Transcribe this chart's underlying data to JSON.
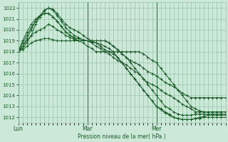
{
  "bg_color": "#cce8d8",
  "grid_color": "#99c4aa",
  "line_color": "#1a5c28",
  "xlabel": "Pression niveau de la mer( hPa )",
  "xtick_labels": [
    "Lun",
    "Mar",
    "Mer"
  ],
  "xtick_positions": [
    0,
    16,
    32
  ],
  "ylim": [
    1011.5,
    1022.5
  ],
  "yticks": [
    1012,
    1013,
    1014,
    1015,
    1016,
    1017,
    1018,
    1019,
    1020,
    1021,
    1022
  ],
  "n_points": 49,
  "series": [
    [
      1018.0,
      1018.3,
      1018.8,
      1019.5,
      1020.5,
      1021.2,
      1021.8,
      1022.0,
      1021.9,
      1021.5,
      1021.0,
      1020.5,
      1020.2,
      1020.0,
      1019.8,
      1019.5,
      1019.2,
      1019.0,
      1018.8,
      1018.5,
      1018.2,
      1018.0,
      1017.8,
      1017.5,
      1017.0,
      1016.5,
      1016.0,
      1015.5,
      1015.0,
      1014.5,
      1014.0,
      1013.5,
      1013.0,
      1012.7,
      1012.4,
      1012.2,
      1012.0,
      1011.9,
      1011.8,
      1011.8,
      1011.8,
      1011.9,
      1012.0,
      1012.1,
      1012.2,
      1012.2,
      1012.2,
      1012.2,
      1012.2
    ],
    [
      1018.0,
      1018.5,
      1019.2,
      1020.0,
      1020.8,
      1021.3,
      1021.7,
      1022.0,
      1021.8,
      1021.3,
      1020.8,
      1020.2,
      1019.8,
      1019.5,
      1019.3,
      1019.1,
      1019.0,
      1018.9,
      1018.8,
      1018.7,
      1018.5,
      1018.3,
      1018.0,
      1017.5,
      1017.0,
      1016.5,
      1016.0,
      1015.5,
      1015.0,
      1014.5,
      1014.0,
      1013.5,
      1013.0,
      1012.8,
      1012.5,
      1012.3,
      1012.0,
      1011.9,
      1011.8,
      1011.8,
      1011.8,
      1011.9,
      1011.9,
      1012.0,
      1012.0,
      1012.0,
      1012.0,
      1012.0,
      1012.0
    ],
    [
      1018.0,
      1018.5,
      1019.0,
      1019.5,
      1019.8,
      1020.0,
      1020.2,
      1020.5,
      1020.3,
      1020.0,
      1019.8,
      1019.5,
      1019.3,
      1019.1,
      1019.0,
      1019.0,
      1019.0,
      1019.0,
      1019.0,
      1019.0,
      1019.0,
      1018.8,
      1018.5,
      1018.2,
      1017.8,
      1017.5,
      1017.0,
      1016.5,
      1016.0,
      1015.5,
      1015.2,
      1015.0,
      1014.8,
      1014.5,
      1014.2,
      1014.0,
      1013.8,
      1013.5,
      1013.2,
      1013.0,
      1012.8,
      1012.5,
      1012.5,
      1012.5,
      1012.5,
      1012.5,
      1012.5,
      1012.5,
      1012.5
    ],
    [
      1018.0,
      1018.2,
      1018.5,
      1018.8,
      1019.0,
      1019.1,
      1019.2,
      1019.2,
      1019.1,
      1019.0,
      1019.0,
      1019.0,
      1019.0,
      1019.0,
      1019.0,
      1019.0,
      1019.0,
      1019.0,
      1019.0,
      1019.0,
      1019.0,
      1018.8,
      1018.5,
      1018.2,
      1017.8,
      1017.5,
      1017.2,
      1017.0,
      1016.8,
      1016.5,
      1016.2,
      1016.0,
      1015.8,
      1015.5,
      1015.2,
      1015.0,
      1014.8,
      1014.5,
      1014.2,
      1014.0,
      1013.8,
      1013.8,
      1013.8,
      1013.8,
      1013.8,
      1013.8,
      1013.8,
      1013.8,
      1013.8
    ],
    [
      1018.0,
      1018.8,
      1019.5,
      1020.2,
      1020.8,
      1021.2,
      1021.5,
      1021.5,
      1021.2,
      1020.8,
      1020.3,
      1019.8,
      1019.5,
      1019.3,
      1019.2,
      1019.0,
      1019.0,
      1018.8,
      1018.5,
      1018.3,
      1018.0,
      1017.8,
      1017.5,
      1017.2,
      1017.0,
      1016.8,
      1016.5,
      1016.2,
      1016.0,
      1015.5,
      1015.0,
      1014.5,
      1014.0,
      1013.5,
      1013.0,
      1012.8,
      1012.5,
      1012.3,
      1012.2,
      1012.2,
      1012.2,
      1012.3,
      1012.3,
      1012.3,
      1012.3,
      1012.3,
      1012.3,
      1012.3,
      1012.3
    ],
    [
      1018.0,
      1019.0,
      1019.8,
      1020.5,
      1021.0,
      1021.3,
      1021.5,
      1021.5,
      1021.2,
      1020.8,
      1020.3,
      1019.8,
      1019.5,
      1019.2,
      1019.0,
      1018.8,
      1018.5,
      1018.3,
      1018.0,
      1018.0,
      1018.0,
      1018.0,
      1018.0,
      1018.0,
      1018.0,
      1018.0,
      1018.0,
      1018.0,
      1018.0,
      1017.8,
      1017.5,
      1017.2,
      1017.0,
      1016.5,
      1016.0,
      1015.5,
      1015.0,
      1014.5,
      1014.0,
      1013.5,
      1013.0,
      1012.8,
      1012.6,
      1012.5,
      1012.5,
      1012.5,
      1012.5,
      1012.5,
      1012.5
    ]
  ]
}
